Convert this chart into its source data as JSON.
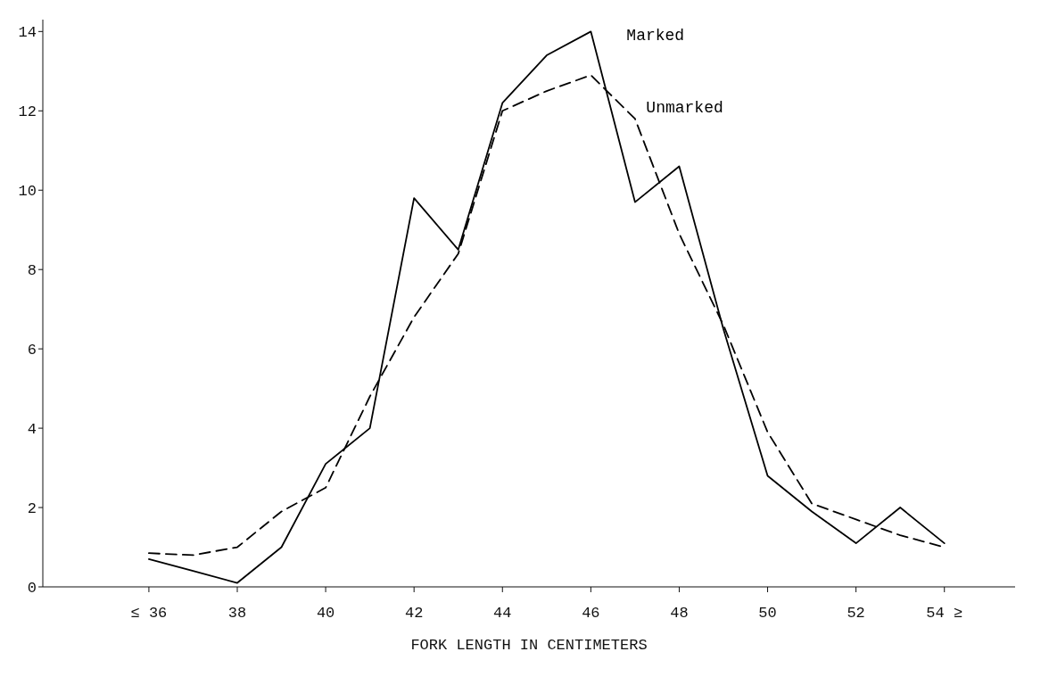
{
  "chart_data": {
    "type": "line",
    "xlabel": "FORK LENGTH IN CENTIMETERS",
    "x": [
      36,
      37,
      38,
      39,
      40,
      41,
      42,
      43,
      44,
      45,
      46,
      47,
      48,
      49,
      50,
      51,
      52,
      53,
      54
    ],
    "series": [
      {
        "name": "Marked",
        "color": "#000000",
        "line_style": "solid",
        "values": [
          0.7,
          0.4,
          0.1,
          1.0,
          3.1,
          4.0,
          9.8,
          8.5,
          12.2,
          13.4,
          14.0,
          9.7,
          10.6,
          6.5,
          2.8,
          1.9,
          1.1,
          2.0,
          1.1
        ]
      },
      {
        "name": "Unmarked",
        "color": "#000000",
        "line_style": "dashed",
        "values": [
          0.85,
          0.8,
          1.0,
          1.9,
          2.5,
          4.8,
          6.8,
          8.4,
          12.0,
          12.5,
          12.9,
          11.8,
          8.9,
          6.6,
          3.9,
          2.1,
          1.7,
          1.3,
          1.0
        ]
      }
    ],
    "xlim": [
      33.6,
      55.6
    ],
    "xticks": [
      {
        "value": 36,
        "label": "≤ 36"
      },
      38,
      40,
      42,
      44,
      46,
      48,
      50,
      52,
      {
        "value": 54,
        "label": "54 ≥"
      }
    ],
    "ylim": [
      0,
      14.3
    ],
    "yticks": [
      0,
      2,
      4,
      6,
      8,
      10,
      12,
      14
    ],
    "grid": false,
    "legend": false,
    "marker": "none"
  }
}
